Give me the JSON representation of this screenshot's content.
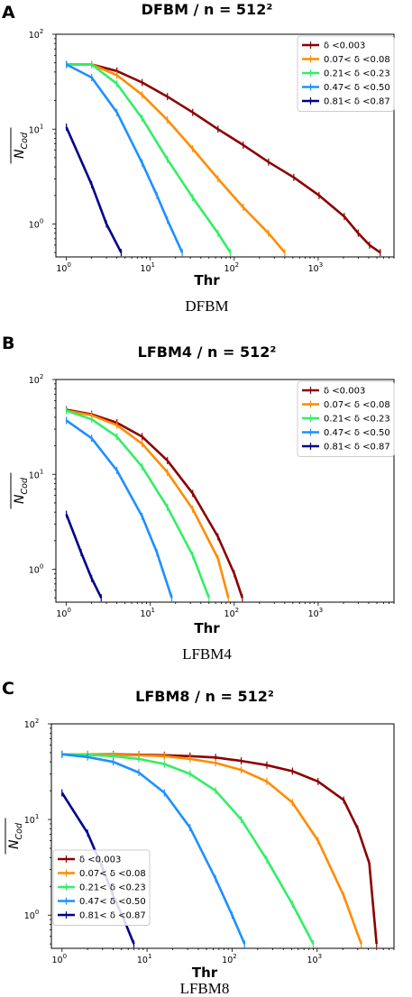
{
  "figure": {
    "panels": [
      {
        "letter": "A",
        "title": "DFBM / n = 512²",
        "caption": "DFBM"
      },
      {
        "letter": "B",
        "title": "LFBM4 / n = 512²",
        "caption": "LFBM4"
      },
      {
        "letter": "C",
        "title": "LFBM8 / n = 512²",
        "caption": "LFBM8"
      }
    ]
  },
  "chart_data": [
    {
      "type": "line",
      "title": "DFBM / n = 512²",
      "xlabel": "Thr",
      "ylabel": "N_Cod",
      "xscale": "log",
      "yscale": "log",
      "xlim": [
        0.75,
        8000
      ],
      "ylim": [
        0.45,
        100
      ],
      "xticks": [
        1,
        10,
        100,
        1000
      ],
      "yticks": [
        1,
        10,
        100
      ],
      "legend": "top-right",
      "grid": false,
      "series": [
        {
          "name": "δ <0.003",
          "color": "#8b0000",
          "x": [
            1,
            2,
            4,
            8,
            16,
            32,
            64,
            128,
            256,
            512,
            1024,
            2048,
            3000,
            4096,
            5500
          ],
          "y": [
            48,
            48,
            41,
            31,
            22,
            15,
            10,
            6.8,
            4.5,
            3.1,
            2.0,
            1.2,
            0.8,
            0.6,
            0.5
          ]
        },
        {
          "name": "0.07< δ <0.08",
          "color": "#ff8c00",
          "x": [
            1,
            2,
            4,
            8,
            16,
            32,
            64,
            128,
            256,
            400
          ],
          "y": [
            48,
            48,
            37,
            23,
            12.5,
            6.2,
            3.0,
            1.5,
            0.8,
            0.5
          ]
        },
        {
          "name": "0.21< δ <0.23",
          "color": "#33ee66",
          "x": [
            1,
            2,
            4,
            8,
            16,
            32,
            64,
            90
          ],
          "y": [
            48,
            48,
            30,
            13,
            4.8,
            1.9,
            0.8,
            0.5
          ]
        },
        {
          "name": "0.47< δ <0.50",
          "color": "#1e90ff",
          "x": [
            1,
            2,
            4,
            8,
            12,
            16,
            24
          ],
          "y": [
            48,
            35,
            15,
            4.4,
            2.0,
            1.1,
            0.5
          ]
        },
        {
          "name": "0.81< δ <0.87",
          "color": "#00008b",
          "x": [
            1,
            2,
            3,
            4.5
          ],
          "y": [
            10.5,
            2.6,
            1.0,
            0.5
          ]
        }
      ]
    },
    {
      "type": "line",
      "title": "LFBM4 / n = 512²",
      "xlabel": "Thr",
      "ylabel": "N_Cod",
      "xscale": "log",
      "yscale": "log",
      "xlim": [
        0.75,
        8000
      ],
      "ylim": [
        0.45,
        100
      ],
      "xticks": [
        1,
        10,
        100,
        1000
      ],
      "yticks": [
        1,
        10,
        100
      ],
      "legend": "top-right",
      "grid": false,
      "series": [
        {
          "name": "δ <0.003",
          "color": "#8b0000",
          "x": [
            1,
            2,
            4,
            8,
            16,
            32,
            64,
            100,
            125
          ],
          "y": [
            48,
            43,
            35,
            25,
            14,
            6.3,
            2.2,
            0.9,
            0.5
          ]
        },
        {
          "name": "0.07< δ <0.08",
          "color": "#ff8c00",
          "x": [
            1,
            2,
            4,
            8,
            16,
            32,
            64,
            85
          ],
          "y": [
            47,
            42,
            33,
            21,
            10.5,
            4.3,
            1.3,
            0.5
          ]
        },
        {
          "name": "0.21< δ <0.23",
          "color": "#33ee66",
          "x": [
            1,
            2,
            4,
            8,
            16,
            32,
            50
          ],
          "y": [
            47,
            38,
            25,
            12,
            4.5,
            1.4,
            0.5
          ]
        },
        {
          "name": "0.47< δ <0.50",
          "color": "#1e90ff",
          "x": [
            1,
            2,
            4,
            8,
            12,
            18
          ],
          "y": [
            37,
            24,
            11,
            3.6,
            1.5,
            0.5
          ]
        },
        {
          "name": "0.81< δ <0.87",
          "color": "#00008b",
          "x": [
            1,
            1.5,
            2,
            2.6
          ],
          "y": [
            3.8,
            1.5,
            0.8,
            0.5
          ]
        }
      ]
    },
    {
      "type": "line",
      "title": "LFBM8 / n = 512²",
      "xlabel": "Thr",
      "ylabel": "N_Cod",
      "xscale": "log",
      "yscale": "log",
      "xlim": [
        0.75,
        8000
      ],
      "ylim": [
        0.45,
        100
      ],
      "xticks": [
        1,
        10,
        100,
        1000
      ],
      "yticks": [
        1,
        10,
        100
      ],
      "legend": "lower-left",
      "grid": false,
      "series": [
        {
          "name": "δ <0.003",
          "color": "#8b0000",
          "x": [
            1,
            2,
            4,
            8,
            16,
            32,
            64,
            128,
            256,
            512,
            1024,
            2048,
            3000,
            4096,
            5000
          ],
          "y": [
            48,
            48,
            48,
            47.5,
            47,
            46,
            44.5,
            41,
            37,
            32,
            25,
            16,
            8,
            3.5,
            0.5
          ]
        },
        {
          "name": "0.07< δ <0.08",
          "color": "#ff8c00",
          "x": [
            1,
            2,
            4,
            8,
            16,
            32,
            64,
            128,
            256,
            512,
            1024,
            2048,
            3300
          ],
          "y": [
            48,
            48,
            47.5,
            47,
            46,
            43,
            39,
            33,
            25,
            15,
            6,
            1.6,
            0.5
          ]
        },
        {
          "name": "0.21< δ <0.23",
          "color": "#33ee66",
          "x": [
            1,
            2,
            4,
            8,
            16,
            32,
            64,
            128,
            256,
            512,
            900
          ],
          "y": [
            48,
            47.5,
            46,
            43,
            38,
            30,
            20,
            10,
            3.8,
            1.3,
            0.5
          ]
        },
        {
          "name": "0.47< δ <0.50",
          "color": "#1e90ff",
          "x": [
            1,
            2,
            4,
            8,
            16,
            32,
            64,
            100,
            140
          ],
          "y": [
            48,
            45,
            40,
            31,
            19,
            8.2,
            2.4,
            1.0,
            0.5
          ]
        },
        {
          "name": "0.81< δ <0.87",
          "color": "#00008b",
          "x": [
            1,
            2,
            3,
            4,
            5.5,
            7
          ],
          "y": [
            19,
            7.2,
            3.1,
            1.6,
            0.85,
            0.5
          ]
        }
      ]
    }
  ]
}
